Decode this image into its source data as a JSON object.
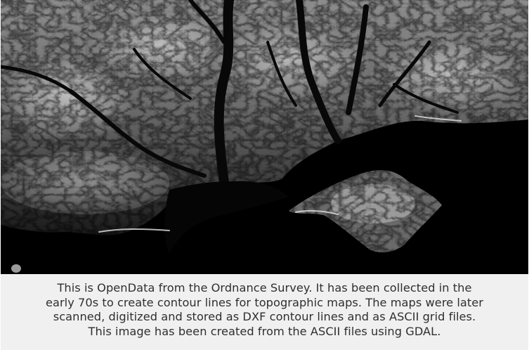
{
  "map": {
    "type": "digital elevation model (grayscale hillshade)",
    "colors": {
      "background": "#000000",
      "lowland": "#3a3a3a",
      "highland": "#cfcfcf",
      "valleys": "#101010",
      "caption_bg": "#f0f0f0",
      "caption_text": "#2f2f2f"
    }
  },
  "caption": {
    "line1": "This is OpenData from the Ordnance Survey. It has been collected in the",
    "line2": "early 70s to create contour lines for topographic maps. The maps were later",
    "line3": "scanned, digitized and stored as DXF contour lines and as ASCII grid files.",
    "line4": "This image has been created from the ASCII files using GDAL."
  }
}
